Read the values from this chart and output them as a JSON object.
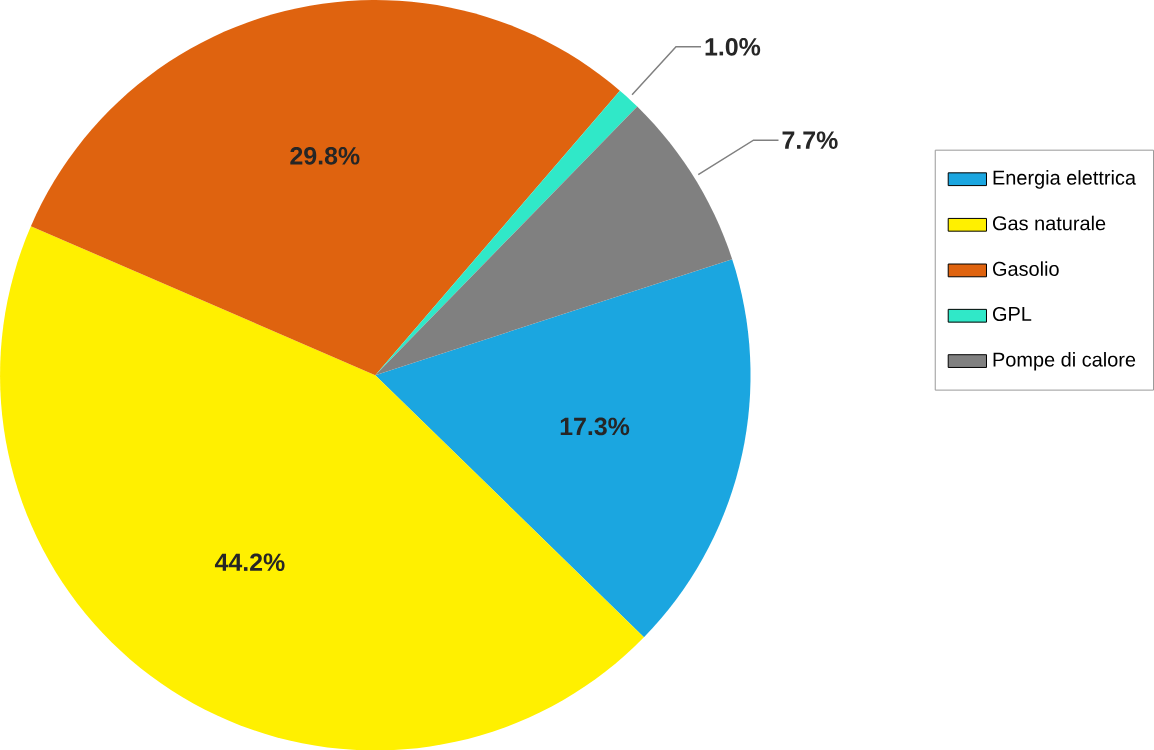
{
  "chart_data": {
    "type": "pie",
    "categories": [
      "Energia elettrica",
      "Gas naturale",
      "Gasolio",
      "GPL",
      "Pompe di calore"
    ],
    "values": [
      17.3,
      44.2,
      29.8,
      1.0,
      7.7
    ],
    "colors": [
      "#1ba6e0",
      "#fff000",
      "#df630f",
      "#30e8c8",
      "#808080"
    ],
    "value_labels": [
      "17.3%",
      "44.2%",
      "29.8%",
      "1.0%",
      "7.7%"
    ],
    "legend": "right"
  }
}
